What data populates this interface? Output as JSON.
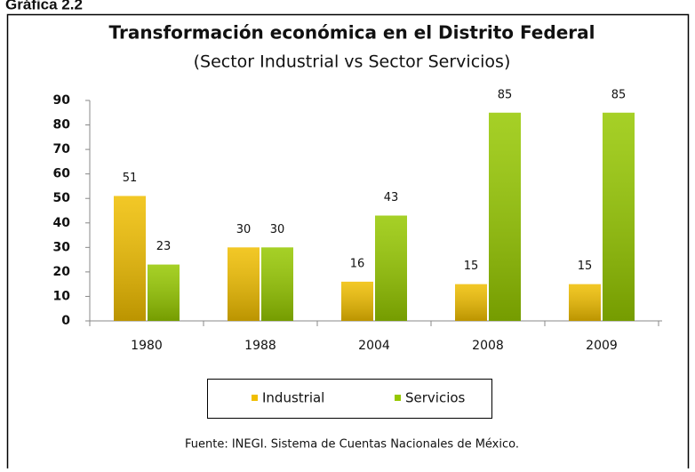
{
  "figure_label": "Gráfica 2.2",
  "chart_data": {
    "type": "bar",
    "title": "Transformación económica en el Distrito Federal",
    "subtitle": "(Sector Industrial vs Sector Servicios)",
    "categories": [
      "1980",
      "1988",
      "2004",
      "2008",
      "2009"
    ],
    "series": [
      {
        "name": "Industrial",
        "color": "#f0be00",
        "values": [
          51,
          30,
          16,
          15,
          15
        ]
      },
      {
        "name": "Servicios",
        "color": "#96c800",
        "values": [
          23,
          30,
          43,
          85,
          85
        ]
      }
    ],
    "ylim": [
      0,
      90
    ],
    "yticks": [
      0,
      10,
      20,
      30,
      40,
      50,
      60,
      70,
      80,
      90
    ],
    "grid": false,
    "legend": "bottom",
    "source": "Fuente: INEGI. Sistema de Cuentas Nacionales de México."
  }
}
